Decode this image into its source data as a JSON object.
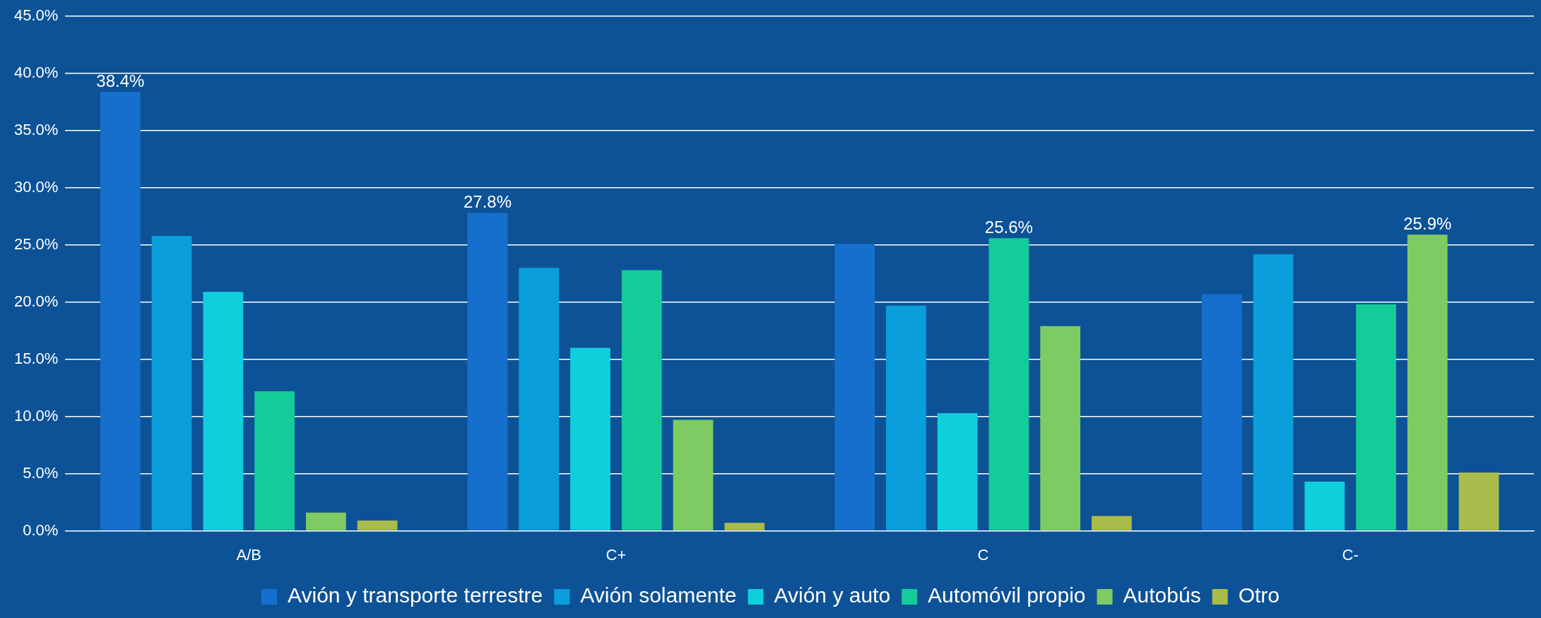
{
  "chart_data": {
    "type": "bar",
    "categories": [
      "A/B",
      "C+",
      "C",
      "C-"
    ],
    "series": [
      {
        "name": "Avión y transporte terrestre",
        "color": "#176fcd",
        "values": [
          38.4,
          27.8,
          25.1,
          20.7
        ],
        "value_labels": [
          "38.4%",
          "27.8%",
          null,
          null
        ]
      },
      {
        "name": "Avión solamente",
        "color": "#0a9edb",
        "values": [
          25.8,
          23.0,
          19.7,
          24.2
        ]
      },
      {
        "name": "Avión y auto",
        "color": "#10cfdc",
        "values": [
          20.9,
          16.0,
          10.3,
          4.3
        ]
      },
      {
        "name": "Automóvil propio",
        "color": "#13cc9a",
        "values": [
          12.2,
          22.8,
          25.6,
          19.8
        ],
        "value_labels": [
          null,
          null,
          "25.6%",
          null
        ]
      },
      {
        "name": "Autobús",
        "color": "#7fcb63",
        "values": [
          1.6,
          9.7,
          17.9,
          25.9
        ],
        "value_labels": [
          null,
          null,
          null,
          "25.9%"
        ]
      },
      {
        "name": "Otro",
        "color": "#a9bb4a",
        "values": [
          0.9,
          0.7,
          1.3,
          5.1
        ]
      }
    ],
    "ylim": [
      0,
      45
    ],
    "yticks": [
      {
        "value": 0,
        "label": "0.0%"
      },
      {
        "value": 5,
        "label": "5.0%"
      },
      {
        "value": 10,
        "label": "10.0%"
      },
      {
        "value": 15,
        "label": "15.0%"
      },
      {
        "value": 20,
        "label": "20.0%"
      },
      {
        "value": 25,
        "label": "25.0%"
      },
      {
        "value": 30,
        "label": "30.0%"
      },
      {
        "value": 35,
        "label": "35.0%"
      },
      {
        "value": 40,
        "label": "40.0%"
      },
      {
        "value": 45,
        "label": "45.0%"
      }
    ],
    "grid": "y",
    "legend": "bottom"
  }
}
